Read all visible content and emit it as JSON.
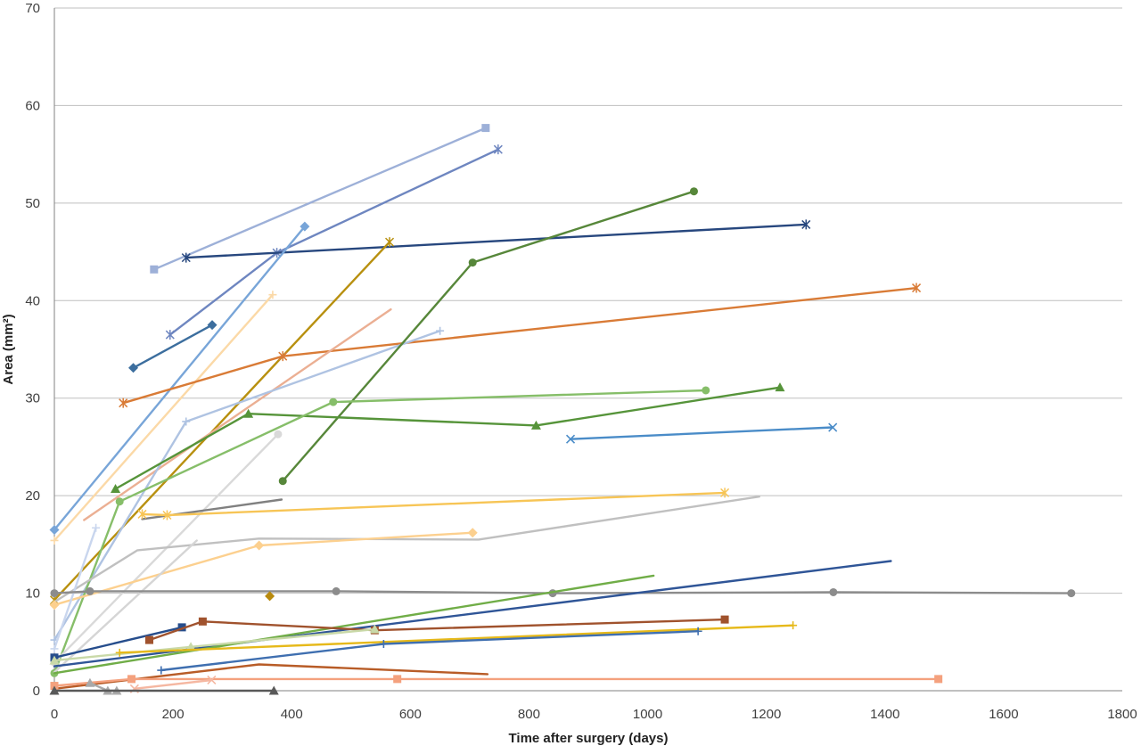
{
  "chart_data": {
    "type": "line",
    "xlabel": "Time after surgery (days)",
    "ylabel": "Area (mm²)",
    "xlim": [
      0,
      1800
    ],
    "ylim": [
      0,
      70
    ],
    "x_ticks": [
      "0",
      "200",
      "400",
      "600",
      "800",
      "1000",
      "1200",
      "1400",
      "1600",
      "1800"
    ],
    "y_ticks": [
      "0",
      "10",
      "20",
      "30",
      "40",
      "50",
      "60",
      "70"
    ],
    "grid": "horizontal",
    "legend": "none",
    "series": [
      {
        "color": "#9DB0D8",
        "marker": "square",
        "points": [
          [
            168,
            43.2
          ],
          [
            727,
            57.7
          ]
        ]
      },
      {
        "color": "#6E86C0",
        "marker": "star",
        "points": [
          [
            195,
            36.5
          ],
          [
            375,
            44.9
          ],
          [
            748,
            55.5
          ]
        ]
      },
      {
        "color": "#27477E",
        "marker": "star",
        "points": [
          [
            222,
            44.4
          ],
          [
            1267,
            47.8
          ]
        ]
      },
      {
        "color": "#78A5D8",
        "marker": "diamond",
        "points": [
          [
            0,
            16.5
          ],
          [
            422,
            47.6
          ]
        ]
      },
      {
        "color": "#3C6E9E",
        "marker": "diamond",
        "points": [
          [
            133,
            33.1
          ],
          [
            266,
            37.5
          ]
        ]
      },
      {
        "color": "#FBD9A7",
        "marker": "plus",
        "points": [
          [
            0,
            15.4
          ],
          [
            368,
            40.6
          ]
        ]
      },
      {
        "color": "#B8900F",
        "marker": "star",
        "points": [
          [
            0,
            9.3
          ],
          [
            565,
            46.0
          ]
        ]
      },
      {
        "color": "#D97B36",
        "marker": "star",
        "points": [
          [
            116,
            29.5
          ],
          [
            385,
            34.3
          ],
          [
            1453,
            41.3
          ]
        ]
      },
      {
        "color": "#EBAF93",
        "marker": "none",
        "points": [
          [
            50,
            17.5
          ],
          [
            567,
            39.1
          ]
        ]
      },
      {
        "color": "#AFC3E2",
        "marker": "plus",
        "points": [
          [
            0,
            5.2
          ],
          [
            222,
            27.6
          ],
          [
            650,
            36.9
          ]
        ]
      },
      {
        "color": "#57873A",
        "marker": "circle",
        "points": [
          [
            385,
            21.5
          ],
          [
            705,
            43.9
          ],
          [
            1078,
            51.2
          ]
        ]
      },
      {
        "color": "#56943A",
        "marker": "triangle",
        "points": [
          [
            103,
            20.7
          ],
          [
            327,
            28.4
          ],
          [
            812,
            27.2
          ],
          [
            1223,
            31.1
          ]
        ]
      },
      {
        "color": "#86BE69",
        "marker": "circle",
        "points": [
          [
            0,
            1.8
          ],
          [
            110,
            19.4
          ],
          [
            470,
            29.6
          ],
          [
            1098,
            30.8
          ]
        ]
      },
      {
        "color": "#4A8CC8",
        "marker": "x",
        "points": [
          [
            870,
            25.8
          ],
          [
            1312,
            27.0
          ]
        ]
      },
      {
        "color": "#D9D9D9",
        "marker": "circle",
        "points": [
          [
            0,
            2.9
          ],
          [
            377,
            26.3
          ]
        ]
      },
      {
        "color": "#808080",
        "marker": "none",
        "points": [
          [
            148,
            17.6
          ],
          [
            383,
            19.6
          ]
        ]
      },
      {
        "color": "#F7C556",
        "marker": "star",
        "points": [
          [
            148,
            18.1
          ],
          [
            190,
            18.0
          ],
          [
            1130,
            20.3
          ]
        ]
      },
      {
        "color": "#C0C0C0",
        "marker": "none",
        "points": [
          [
            0,
            9.1
          ],
          [
            140,
            14.4
          ],
          [
            345,
            15.6
          ],
          [
            715,
            15.5
          ],
          [
            1188,
            19.9
          ]
        ]
      },
      {
        "color": "#FCD08F",
        "marker": "diamond",
        "points": [
          [
            0,
            8.8
          ],
          [
            345,
            14.9
          ],
          [
            705,
            16.2
          ]
        ]
      },
      {
        "color": "#C9D6EE",
        "marker": "plus",
        "points": [
          [
            0,
            4.3
          ],
          [
            70,
            16.7
          ]
        ]
      },
      {
        "color": "#D5D5D5",
        "marker": "none",
        "points": [
          [
            0,
            1.9
          ],
          [
            240,
            15.4
          ]
        ]
      },
      {
        "color": "#8C8C8C",
        "marker": "circle",
        "points": [
          [
            0,
            10.0
          ],
          [
            60,
            10.2
          ],
          [
            475,
            10.2
          ],
          [
            840,
            10.0
          ],
          [
            1313,
            10.1
          ],
          [
            1714,
            10.0
          ]
        ]
      },
      {
        "color": "#B88A0E",
        "marker": "diamond",
        "points": [
          [
            363,
            9.7
          ]
        ]
      },
      {
        "color": "#2F5597",
        "marker": "none",
        "points": [
          [
            0,
            2.5
          ],
          [
            1410,
            13.3
          ]
        ]
      },
      {
        "color": "#70AD47",
        "marker": "none",
        "points": [
          [
            0,
            1.8
          ],
          [
            1010,
            11.8
          ]
        ]
      },
      {
        "color": "#264D8C",
        "marker": "square",
        "points": [
          [
            0,
            3.4
          ],
          [
            215,
            6.5
          ]
        ]
      },
      {
        "color": "#A0522D",
        "marker": "square",
        "points": [
          [
            160,
            5.2
          ],
          [
            250,
            7.1
          ],
          [
            540,
            6.2
          ],
          [
            1130,
            7.3
          ]
        ]
      },
      {
        "color": "#C9D9A8",
        "marker": "triangle",
        "points": [
          [
            0,
            3.1
          ],
          [
            230,
            4.5
          ],
          [
            540,
            6.3
          ]
        ]
      },
      {
        "color": "#E6B91A",
        "marker": "plus",
        "points": [
          [
            110,
            3.9
          ],
          [
            1245,
            6.7
          ]
        ]
      },
      {
        "color": "#3F6FB0",
        "marker": "plus",
        "points": [
          [
            180,
            2.1
          ],
          [
            555,
            4.8
          ],
          [
            1085,
            6.1
          ]
        ]
      },
      {
        "color": "#B85C27",
        "marker": "none",
        "points": [
          [
            0,
            0.2
          ],
          [
            345,
            2.7
          ],
          [
            730,
            1.7
          ]
        ]
      },
      {
        "color": "#F4A17E",
        "marker": "square",
        "points": [
          [
            0,
            0.5
          ],
          [
            130,
            1.2
          ],
          [
            578,
            1.2
          ],
          [
            1490,
            1.2
          ]
        ]
      },
      {
        "color": "#F5B7A1",
        "marker": "x",
        "points": [
          [
            135,
            0.2
          ],
          [
            265,
            1.1
          ]
        ]
      },
      {
        "color": "#A9A9A9",
        "marker": "triangle",
        "points": [
          [
            60,
            0.8
          ],
          [
            90,
            0.0
          ],
          [
            105,
            0.0
          ]
        ]
      },
      {
        "color": "#595959",
        "marker": "triangle",
        "points": [
          [
            0,
            0.0
          ],
          [
            370,
            0.0
          ]
        ]
      }
    ]
  }
}
